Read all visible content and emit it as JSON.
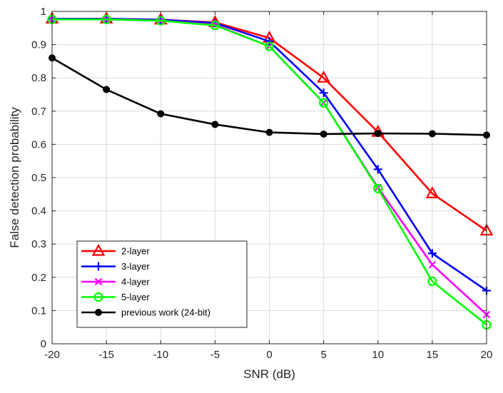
{
  "chart_data": {
    "type": "line",
    "title": "",
    "xlabel": "SNR (dB)",
    "ylabel": "False detection probability",
    "xlim": [
      -20,
      20
    ],
    "ylim": [
      0,
      1
    ],
    "xticks": [
      -20,
      -15,
      -10,
      -5,
      0,
      5,
      10,
      15,
      20
    ],
    "xtick_labels": [
      "-20",
      "-15",
      "-10",
      "-5",
      "0",
      "5",
      "10",
      "15",
      "20"
    ],
    "yticks": [
      0,
      0.1,
      0.2,
      0.3,
      0.4,
      0.5,
      0.6,
      0.7,
      0.8,
      0.9,
      1
    ],
    "ytick_labels": [
      "0",
      "0.1",
      "0.2",
      "0.3",
      "0.4",
      "0.5",
      "0.6",
      "0.7",
      "0.8",
      "0.9",
      "1"
    ],
    "grid": true,
    "legend_position": "bottom-left",
    "x": [
      -20,
      -15,
      -10,
      -5,
      0,
      5,
      10,
      15,
      20
    ],
    "series": [
      {
        "name": "2-layer",
        "color": "#ff0000",
        "marker": "triangle",
        "values": [
          0.978,
          0.978,
          0.975,
          0.967,
          0.92,
          0.8,
          0.637,
          0.452,
          0.34
        ]
      },
      {
        "name": "3-layer",
        "color": "#0000ff",
        "marker": "plus",
        "values": [
          0.978,
          0.978,
          0.975,
          0.965,
          0.91,
          0.755,
          0.525,
          0.272,
          0.16
        ]
      },
      {
        "name": "4-layer",
        "color": "#ff00ff",
        "marker": "x",
        "values": [
          0.976,
          0.976,
          0.972,
          0.96,
          0.895,
          0.725,
          0.47,
          0.238,
          0.088
        ]
      },
      {
        "name": "5-layer",
        "color": "#00ff00",
        "marker": "circle",
        "values": [
          0.976,
          0.976,
          0.972,
          0.958,
          0.895,
          0.725,
          0.467,
          0.188,
          0.057
        ]
      },
      {
        "name": "previous work (24-bit)",
        "color": "#000000",
        "marker": "dot",
        "values": [
          0.86,
          0.765,
          0.692,
          0.66,
          0.636,
          0.631,
          0.633,
          0.632,
          0.628
        ]
      }
    ]
  }
}
